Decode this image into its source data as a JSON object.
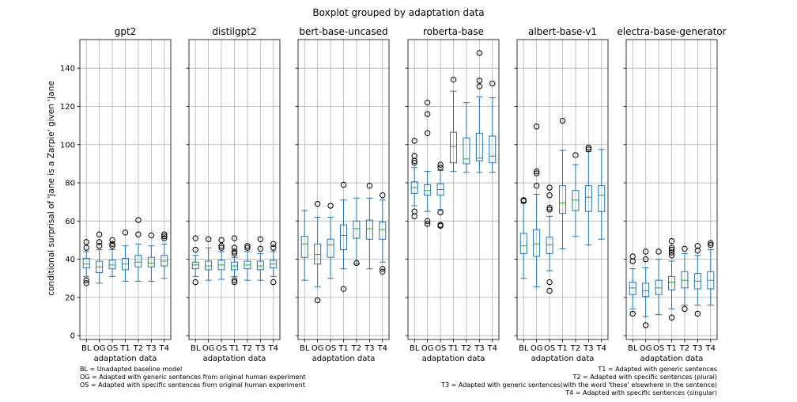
{
  "chart_data": {
    "type": "box",
    "suptitle": "Boxplot grouped by adaptation data",
    "ylabel": "conditional surprisal of 'Jane is a Zarpie' given 'Jane",
    "xlabel": "adaptation data",
    "ylim": [
      -2,
      155
    ],
    "yticks": [
      0,
      20,
      40,
      60,
      80,
      100,
      120,
      140
    ],
    "grid": true,
    "categories": [
      "BL",
      "OG",
      "OS",
      "T1",
      "T2",
      "T3",
      "T4"
    ],
    "colors": {
      "box": "#1f77b4",
      "median": "#2ca02c",
      "grid": "#b0b0b0"
    },
    "panels": [
      {
        "title": "gpt2",
        "boxes": [
          {
            "q1": 35.5,
            "median": 37.5,
            "q3": 40.5,
            "whisker_low": 31,
            "whisker_high": 44,
            "fliers": [
              27.5,
              29,
              46,
              49
            ]
          },
          {
            "q1": 33,
            "median": 36,
            "q3": 39,
            "whisker_low": 27.5,
            "whisker_high": 45,
            "fliers": [
              47,
              49,
              53
            ]
          },
          {
            "q1": 35,
            "median": 37,
            "q3": 39.5,
            "whisker_low": 31,
            "whisker_high": 45,
            "fliers": [
              47,
              48,
              50
            ]
          },
          {
            "q1": 34.5,
            "median": 37.5,
            "q3": 40.5,
            "whisker_low": 28.5,
            "whisker_high": 47,
            "fliers": [
              54
            ]
          },
          {
            "q1": 36,
            "median": 38.5,
            "q3": 42,
            "whisker_low": 28.5,
            "whisker_high": 48,
            "fliers": [
              53,
              60.5
            ]
          },
          {
            "q1": 36,
            "median": 38,
            "q3": 41,
            "whisker_low": 28.5,
            "whisker_high": 47,
            "fliers": [
              52.5
            ]
          },
          {
            "q1": 36.5,
            "median": 39,
            "q3": 42,
            "whisker_low": 30,
            "whisker_high": 48,
            "fliers": [
              51,
              52,
              53
            ]
          }
        ]
      },
      {
        "title": "distilgpt2",
        "boxes": [
          {
            "q1": 35,
            "median": 37,
            "q3": 38.5,
            "whisker_low": 31,
            "whisker_high": 42,
            "fliers": [
              28,
              45,
              51
            ]
          },
          {
            "q1": 34.5,
            "median": 36.5,
            "q3": 39,
            "whisker_low": 29,
            "whisker_high": 46,
            "fliers": [
              50.5
            ]
          },
          {
            "q1": 34.5,
            "median": 37,
            "q3": 39.5,
            "whisker_low": 29.5,
            "whisker_high": 44,
            "fliers": [
              46,
              47,
              50
            ]
          },
          {
            "q1": 34.5,
            "median": 36.5,
            "q3": 38.5,
            "whisker_low": 31,
            "whisker_high": 41,
            "fliers": [
              28,
              29,
              43,
              44,
              46,
              51
            ]
          },
          {
            "q1": 35,
            "median": 37,
            "q3": 39,
            "whisker_low": 29,
            "whisker_high": 44,
            "fliers": [
              46,
              47
            ]
          },
          {
            "q1": 34.5,
            "median": 36.5,
            "q3": 39,
            "whisker_low": 29,
            "whisker_high": 43,
            "fliers": [
              45.5,
              50.5
            ]
          },
          {
            "q1": 35.5,
            "median": 37.5,
            "q3": 39.5,
            "whisker_low": 31,
            "whisker_high": 44,
            "fliers": [
              28,
              46,
              48
            ]
          }
        ]
      },
      {
        "title": "bert-base-uncased",
        "boxes": [
          {
            "q1": 41,
            "median": 48,
            "q3": 52,
            "whisker_low": 29,
            "whisker_high": 65.5,
            "fliers": []
          },
          {
            "q1": 37.5,
            "median": 42.5,
            "q3": 48,
            "whisker_low": 25.5,
            "whisker_high": 62,
            "fliers": [
              18.5,
              69
            ]
          },
          {
            "q1": 41,
            "median": 47.5,
            "q3": 50.5,
            "whisker_low": 30,
            "whisker_high": 62,
            "fliers": [
              68
            ]
          },
          {
            "q1": 45,
            "median": 52.5,
            "q3": 58,
            "whisker_low": 35,
            "whisker_high": 71,
            "fliers": [
              24.5,
              79
            ]
          },
          {
            "q1": 51,
            "median": 56,
            "q3": 60,
            "whisker_low": 37.5,
            "whisker_high": 72,
            "fliers": [
              38
            ]
          },
          {
            "q1": 50.5,
            "median": 56,
            "q3": 60.5,
            "whisker_low": 35,
            "whisker_high": 72,
            "fliers": [
              78.5
            ]
          },
          {
            "q1": 50.5,
            "median": 55.5,
            "q3": 59.5,
            "whisker_low": 38.5,
            "whisker_high": 71,
            "fliers": [
              33.5,
              35,
              73.5
            ]
          }
        ]
      },
      {
        "title": "roberta-base",
        "boxes": [
          {
            "q1": 74.5,
            "median": 77.5,
            "q3": 80.5,
            "whisker_low": 68,
            "whisker_high": 88,
            "fliers": [
              62.5,
              65,
              90.5,
              91.5,
              94,
              102
            ]
          },
          {
            "q1": 73.5,
            "median": 76,
            "q3": 79,
            "whisker_low": 65,
            "whisker_high": 86,
            "fliers": [
              58.5,
              60,
              106,
              116,
              122
            ]
          },
          {
            "q1": 73.5,
            "median": 76.5,
            "q3": 79.5,
            "whisker_low": 66,
            "whisker_high": 86.5,
            "fliers": [
              57.5,
              58,
              64.5,
              88,
              89.5
            ]
          },
          {
            "q1": 90.5,
            "median": 99,
            "q3": 106.5,
            "whisker_low": 86,
            "whisker_high": 128,
            "fliers": [
              134
            ]
          },
          {
            "q1": 90,
            "median": 92.5,
            "q3": 103.5,
            "whisker_low": 85.5,
            "whisker_high": 122,
            "fliers": []
          },
          {
            "q1": 91.5,
            "median": 93,
            "q3": 106,
            "whisker_low": 85.5,
            "whisker_high": 125,
            "fliers": [
              130.5,
              133.5,
              148
            ]
          },
          {
            "q1": 90.5,
            "median": 94,
            "q3": 104.5,
            "whisker_low": 85.5,
            "whisker_high": 124.5,
            "fliers": [
              132
            ]
          }
        ]
      },
      {
        "title": "albert-base-v1",
        "boxes": [
          {
            "q1": 43,
            "median": 47,
            "q3": 53.5,
            "whisker_low": 30,
            "whisker_high": 69.5,
            "fliers": [
              70.5,
              71
            ]
          },
          {
            "q1": 41.5,
            "median": 48,
            "q3": 55.5,
            "whisker_low": 25.5,
            "whisker_high": 74,
            "fliers": [
              78.5,
              85,
              86,
              109.5
            ]
          },
          {
            "q1": 43,
            "median": 47.5,
            "q3": 51.5,
            "whisker_low": 34,
            "whisker_high": 62.5,
            "fliers": [
              23.5,
              28,
              66,
              67,
              73.5,
              77.5
            ]
          },
          {
            "q1": 64,
            "median": 69.5,
            "q3": 78.5,
            "whisker_low": 45.5,
            "whisker_high": 97,
            "fliers": [
              112.5
            ]
          },
          {
            "q1": 65.5,
            "median": 71,
            "q3": 76,
            "whisker_low": 52,
            "whisker_high": 89.5,
            "fliers": [
              94.5
            ]
          },
          {
            "q1": 65,
            "median": 72.5,
            "q3": 78.5,
            "whisker_low": 47.5,
            "whisker_high": 96.5,
            "fliers": [
              97.5,
              98.5
            ]
          },
          {
            "q1": 65,
            "median": 73.5,
            "q3": 78.5,
            "whisker_low": 50.5,
            "whisker_high": 97.5,
            "fliers": []
          }
        ]
      },
      {
        "title": "electra-base-generator",
        "boxes": [
          {
            "q1": 21.5,
            "median": 25,
            "q3": 28,
            "whisker_low": 14,
            "whisker_high": 35,
            "fliers": [
              11.5,
              39,
              41.5
            ]
          },
          {
            "q1": 20.5,
            "median": 23.5,
            "q3": 27.5,
            "whisker_low": 10,
            "whisker_high": 35.5,
            "fliers": [
              5.5,
              40,
              44
            ]
          },
          {
            "q1": 21.5,
            "median": 25,
            "q3": 29,
            "whisker_low": 11,
            "whisker_high": 40,
            "fliers": [
              44
            ]
          },
          {
            "q1": 24,
            "median": 28,
            "q3": 31,
            "whisker_low": 14,
            "whisker_high": 39,
            "fliers": [
              9.5,
              42,
              43.5,
              45,
              46,
              49.5
            ]
          },
          {
            "q1": 25,
            "median": 29,
            "q3": 33.5,
            "whisker_low": 16,
            "whisker_high": 43,
            "fliers": [
              14,
              45.5
            ]
          },
          {
            "q1": 24.5,
            "median": 28.5,
            "q3": 32.5,
            "whisker_low": 16,
            "whisker_high": 42,
            "fliers": [
              11.5,
              44.5,
              47
            ]
          },
          {
            "q1": 24.5,
            "median": 29,
            "q3": 33.5,
            "whisker_low": 16,
            "whisker_high": 45,
            "fliers": [
              47.5,
              48.5
            ]
          }
        ]
      }
    ],
    "footnotes_left": [
      "BL = Unadapted baseline model",
      "OG = Adapted with generic sentences from original human experiment",
      "OS = Adapted with specific sentences from original human experiment"
    ],
    "footnotes_right": [
      "T1 = Adapted with generic sentences",
      "T2 = Adapted with specific sentences (plural)",
      "T3 = Adapted with generic sentences(with the word 'these' elsewhere in the sentence)",
      "T4 = Adapted with specific sentences (singular)"
    ]
  }
}
